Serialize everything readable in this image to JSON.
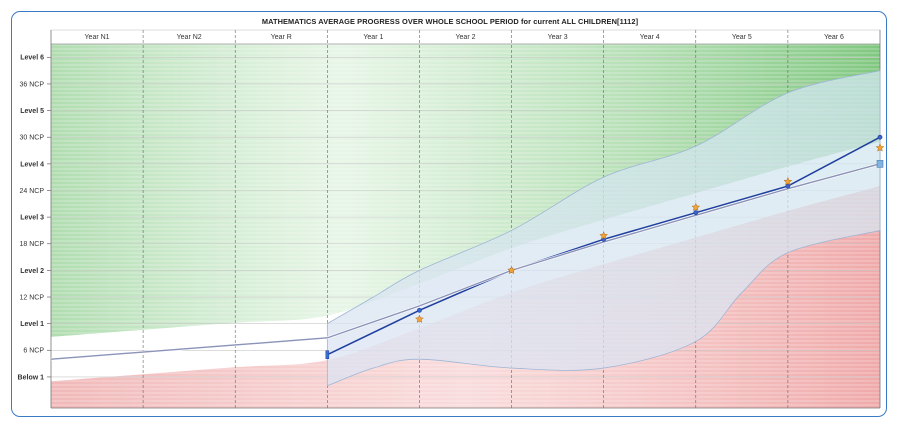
{
  "chart_data": {
    "type": "line",
    "title": "MATHEMATICS AVERAGE PROGRESS OVER WHOLE SCHOOL PERIOD for current  ALL CHILDREN[1112]",
    "columns": [
      "Year N1",
      "Year N2",
      "Year R",
      "Year 1",
      "Year 2",
      "Year 3",
      "Year 4",
      "Year 5",
      "Year 6"
    ],
    "y_labels": [
      {
        "label": "Below 1",
        "value": 3,
        "major": true
      },
      {
        "label": "6 NCP",
        "value": 6,
        "major": false
      },
      {
        "label": "Level 1",
        "value": 9,
        "major": true
      },
      {
        "label": "12 NCP",
        "value": 12,
        "major": false
      },
      {
        "label": "Level 2",
        "value": 15,
        "major": true
      },
      {
        "label": "18 NCP",
        "value": 18,
        "major": false
      },
      {
        "label": "Level 3",
        "value": 21,
        "major": true
      },
      {
        "label": "24 NCP",
        "value": 24,
        "major": false
      },
      {
        "label": "Level 4",
        "value": 27,
        "major": true
      },
      {
        "label": "30 NCP",
        "value": 30,
        "major": false
      },
      {
        "label": "Level 5",
        "value": 33,
        "major": true
      },
      {
        "label": "36 NCP",
        "value": 36,
        "major": false
      },
      {
        "label": "Level 6",
        "value": 39,
        "major": true
      }
    ],
    "ylim": [
      -0.5,
      40.5
    ],
    "series": [
      {
        "role": "actual",
        "color": "#1f3f9e",
        "points": [
          [
            3.0,
            5.5
          ],
          [
            4.0,
            10.5
          ],
          [
            5.0,
            15.0
          ],
          [
            6.0,
            18.5
          ],
          [
            7.0,
            21.5
          ],
          [
            8.0,
            24.5
          ],
          [
            9.0,
            30.0
          ]
        ]
      },
      {
        "role": "expected",
        "color": "#8a93b8",
        "points": [
          [
            0.0,
            5.0
          ],
          [
            1.0,
            5.8
          ],
          [
            2.0,
            6.6
          ],
          [
            3.0,
            7.4
          ],
          [
            4.0,
            11.0
          ],
          [
            5.0,
            15.0
          ],
          [
            6.0,
            18.2
          ],
          [
            7.0,
            21.2
          ],
          [
            8.0,
            24.2
          ],
          [
            9.0,
            27.0
          ]
        ]
      },
      {
        "role": "stars",
        "color": "#f2a33a",
        "points": [
          [
            4.0,
            9.5
          ],
          [
            5.0,
            15.0
          ],
          [
            6.0,
            18.9
          ],
          [
            7.0,
            22.1
          ],
          [
            8.0,
            25.0
          ],
          [
            9.0,
            28.8
          ]
        ]
      }
    ],
    "band_upper": [
      [
        3.0,
        9.0
      ],
      [
        3.5,
        12.0
      ],
      [
        4.0,
        15.0
      ],
      [
        5.0,
        19.5
      ],
      [
        6.0,
        25.5
      ],
      [
        7.0,
        29.0
      ],
      [
        8.0,
        35.0
      ],
      [
        9.0,
        37.5
      ]
    ],
    "band_lower": [
      [
        3.0,
        2.0
      ],
      [
        3.5,
        4.0
      ],
      [
        4.0,
        5.0
      ],
      [
        5.0,
        4.0
      ],
      [
        6.0,
        4.0
      ],
      [
        7.0,
        7.0
      ],
      [
        7.5,
        12.5
      ],
      [
        8.0,
        17.0
      ],
      [
        9.0,
        19.5
      ]
    ],
    "colors": {
      "frame": "#3a7bc8",
      "green_zone": "#7ec87e",
      "red_zone": "#e88a8a"
    }
  }
}
